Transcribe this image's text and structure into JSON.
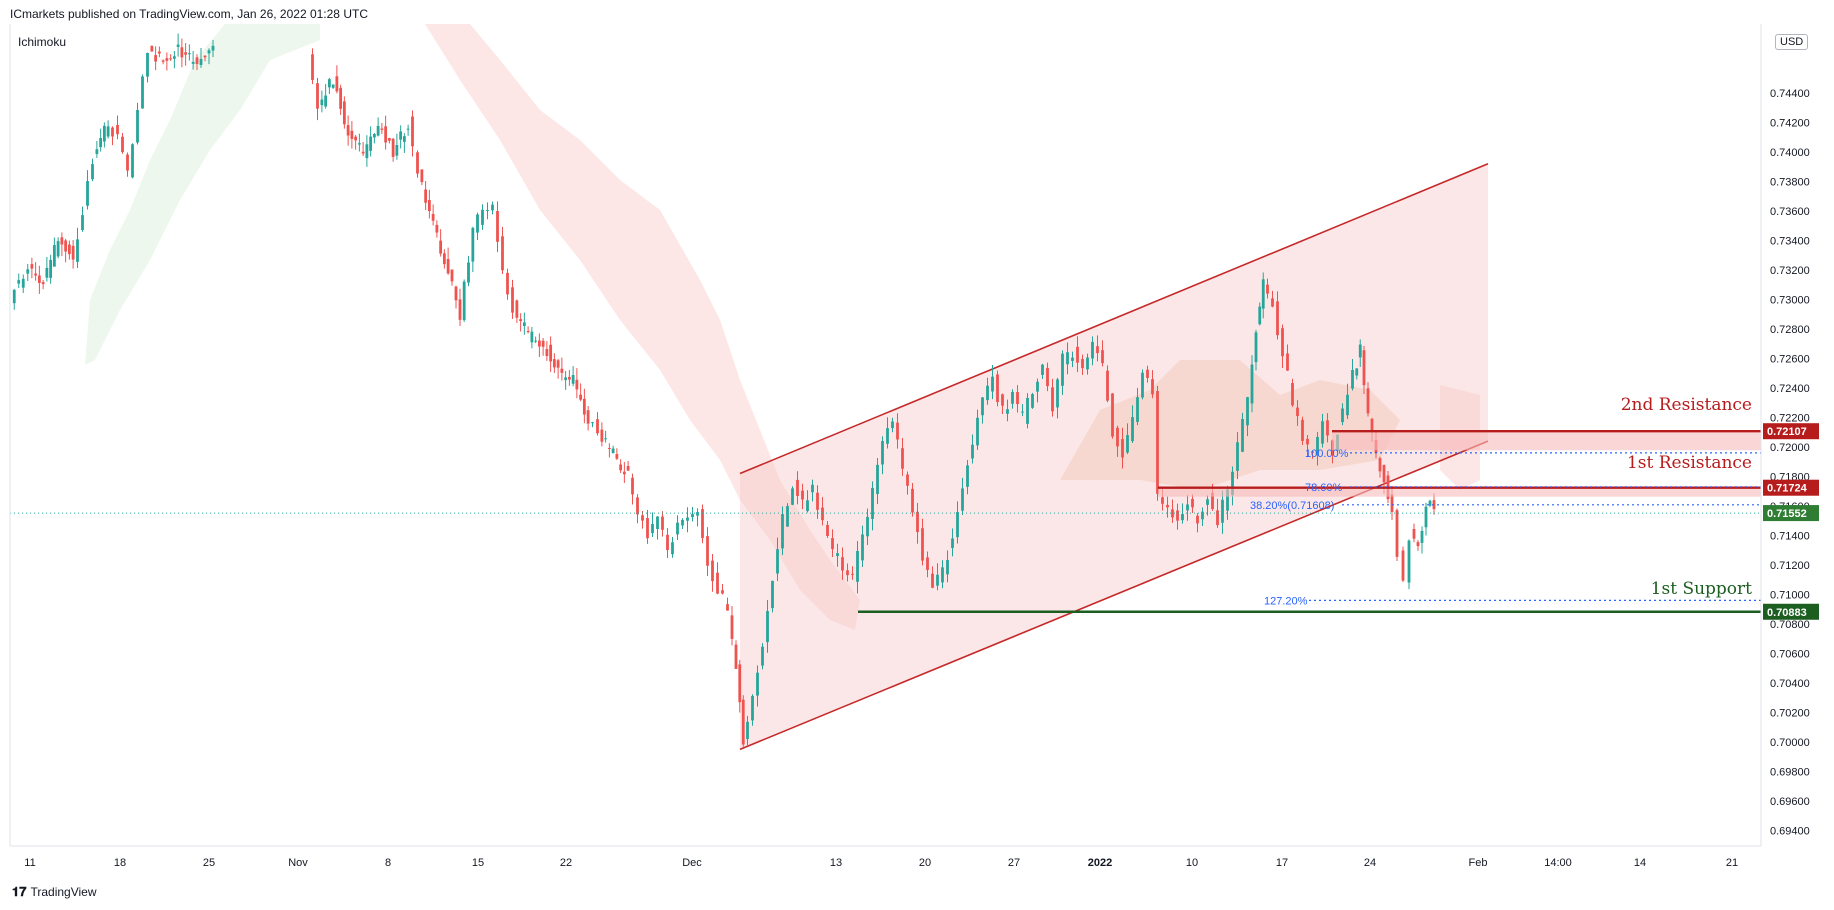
{
  "header": {
    "published": "ICmarkets published on TradingView.com, Jan 26, 2022 01:28 UTC",
    "indicator": "Ichimoku",
    "currency": "USD",
    "footer": "TradingView"
  },
  "chart_data": {
    "type": "candlestick",
    "y_axis": {
      "ticks": [
        0.744,
        0.742,
        0.74,
        0.738,
        0.736,
        0.734,
        0.732,
        0.73,
        0.728,
        0.726,
        0.724,
        0.722,
        0.72,
        0.718,
        0.716,
        0.714,
        0.712,
        0.71,
        0.708,
        0.706,
        0.704,
        0.702,
        0.7,
        0.698,
        0.696,
        0.694
      ],
      "tick_labels": [
        "0.74400",
        "0.74200",
        "0.74000",
        "0.73800",
        "0.73600",
        "0.73400",
        "0.73200",
        "0.73000",
        "0.72800",
        "0.72600",
        "0.72400",
        "0.72200",
        "0.72000",
        "0.71800",
        "0.71600",
        "0.71400",
        "0.71200",
        "0.71000",
        "0.70800",
        "0.70600",
        "0.70400",
        "0.70200",
        "0.70000",
        "0.69800",
        "0.69600",
        "0.69400"
      ],
      "ylim": [
        0.6932,
        0.7474
      ]
    },
    "x_axis": {
      "tick_labels": [
        "11",
        "18",
        "25",
        "Nov",
        "8",
        "15",
        "22",
        "Dec",
        "13",
        "20",
        "27",
        "2022",
        "10",
        "17",
        "24",
        "Feb",
        "14:00",
        "14",
        "21"
      ]
    },
    "levels": [
      {
        "name": "2nd Resistance",
        "price": 0.72107,
        "price_label": "0.72107",
        "color": "#b71c1c"
      },
      {
        "name": "1st Resistance",
        "price": 0.71724,
        "price_label": "0.71724",
        "color": "#b71c1c"
      },
      {
        "name": "1st Support",
        "price": 0.70883,
        "price_label": "0.70883",
        "color": "#1b5e20"
      }
    ],
    "current_price": {
      "price": 0.71552,
      "label": "0.71552",
      "color": "#26a69a"
    },
    "fibonacci": [
      {
        "label": "100.00%",
        "price": 0.7196
      },
      {
        "label": "78.60%",
        "price": 0.7173
      },
      {
        "label": "38.20%(0.71608)",
        "price": 0.71608
      },
      {
        "label": "127.20%",
        "price": 0.7096
      }
    ],
    "channel": {
      "upper": [
        [
          0.7182,
          0.7392
        ]
      ],
      "lower": [
        [
          0.6995,
          0.7204
        ]
      ]
    },
    "colors": {
      "up": "#26a69a",
      "down": "#ef5350",
      "resistance": "#b71c1c",
      "support": "#1b5e20"
    }
  }
}
